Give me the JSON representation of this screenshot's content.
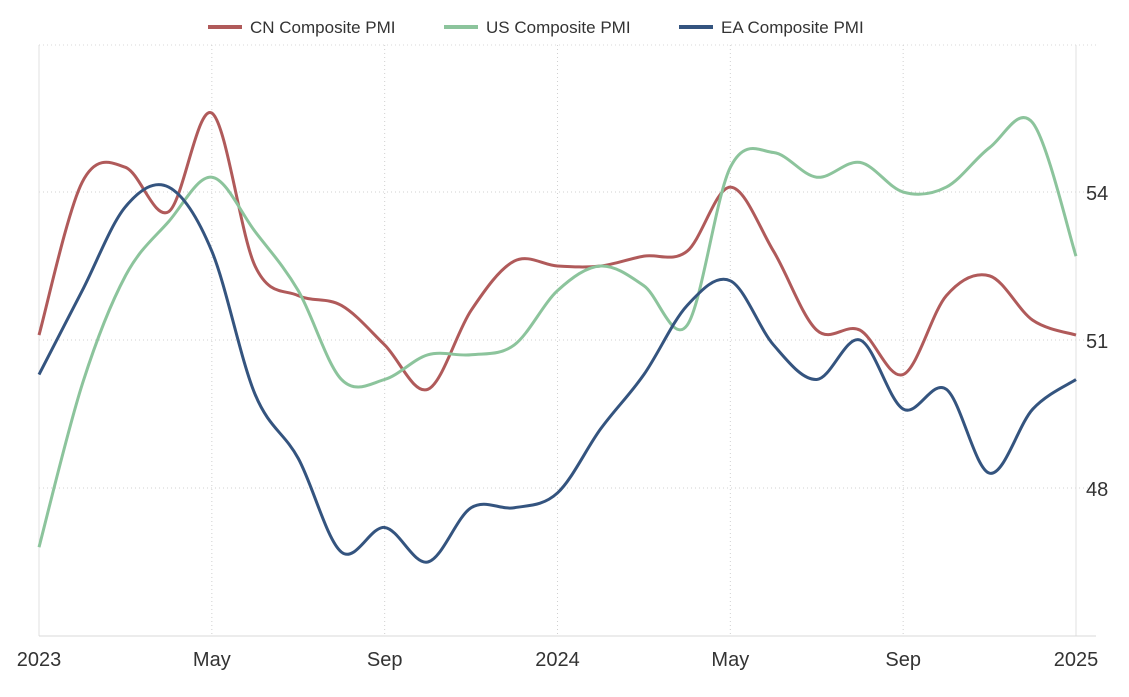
{
  "chart_data": {
    "type": "line",
    "title": "",
    "xlabel": "",
    "ylabel": "",
    "x": [
      "2023-01",
      "2023-02",
      "2023-03",
      "2023-04",
      "2023-05",
      "2023-06",
      "2023-07",
      "2023-08",
      "2023-09",
      "2023-10",
      "2023-11",
      "2023-12",
      "2024-01",
      "2024-02",
      "2024-03",
      "2024-04",
      "2024-05",
      "2024-06",
      "2024-07",
      "2024-08",
      "2024-09",
      "2024-10",
      "2024-11",
      "2024-12",
      "2025-01"
    ],
    "x_ticks": [
      {
        "index": 0,
        "label": "2023"
      },
      {
        "index": 4,
        "label": "May"
      },
      {
        "index": 8,
        "label": "Sep"
      },
      {
        "index": 12,
        "label": "2024"
      },
      {
        "index": 16,
        "label": "May"
      },
      {
        "index": 20,
        "label": "Sep"
      },
      {
        "index": 24,
        "label": "2025"
      }
    ],
    "y_ticks": [
      48,
      51,
      54
    ],
    "y_axis_side": "right",
    "ylim": [
      45.1,
      57.0
    ],
    "grid": true,
    "legend_position": "top",
    "series": [
      {
        "name": "CN Composite PMI",
        "color": "#b05a5a",
        "values": [
          51.1,
          54.2,
          54.5,
          53.6,
          55.6,
          52.5,
          51.9,
          51.7,
          50.9,
          50.0,
          51.6,
          52.6,
          52.5,
          52.5,
          52.7,
          52.8,
          54.1,
          52.8,
          51.2,
          51.2,
          50.3,
          51.9,
          52.3,
          51.4,
          51.1
        ]
      },
      {
        "name": "US Composite PMI",
        "color": "#8cc49c",
        "values": [
          46.8,
          50.1,
          52.3,
          53.4,
          54.3,
          53.2,
          52.0,
          50.2,
          50.2,
          50.7,
          50.7,
          50.9,
          52.0,
          52.5,
          52.1,
          51.3,
          54.5,
          54.8,
          54.3,
          54.6,
          54.0,
          54.1,
          54.9,
          55.4,
          52.7
        ]
      },
      {
        "name": "EA Composite PMI",
        "color": "#34547f",
        "values": [
          50.3,
          52.0,
          53.7,
          54.1,
          52.8,
          49.9,
          48.6,
          46.7,
          47.2,
          46.5,
          47.6,
          47.6,
          47.9,
          49.2,
          50.3,
          51.7,
          52.2,
          50.9,
          50.2,
          51.0,
          49.6,
          50.0,
          48.3,
          49.6,
          50.2
        ]
      }
    ]
  }
}
